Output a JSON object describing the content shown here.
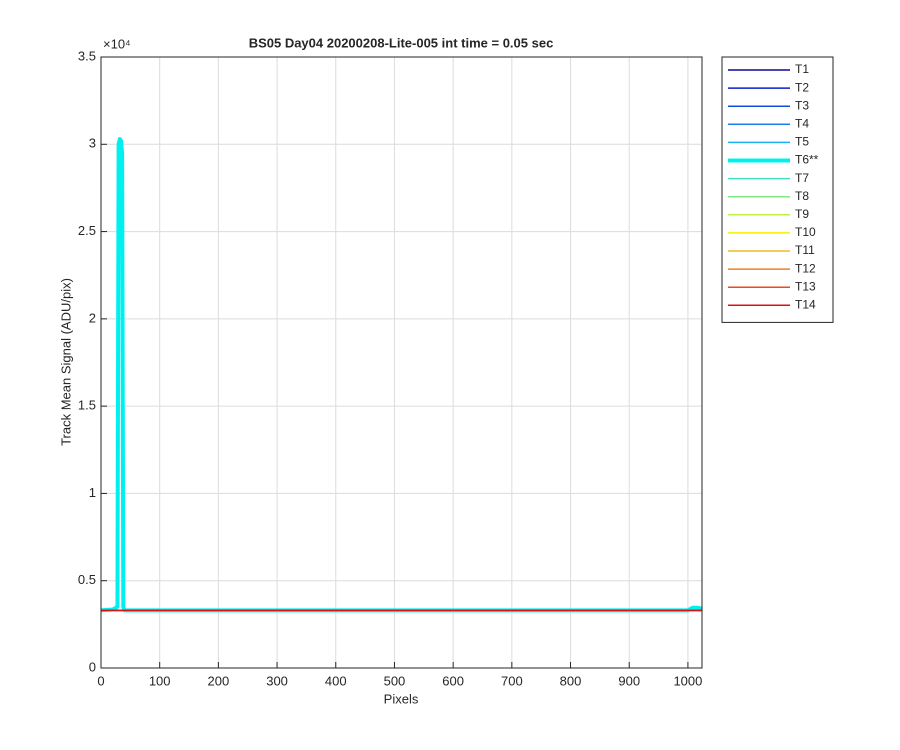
{
  "chart_data": {
    "type": "line",
    "title": "BS05 Day04 20200208-Lite-005 int time = 0.05 sec",
    "x_label": "Pixels",
    "y_label": "Track Mean Signal (ADU/pix)",
    "y_exponent_label": "×10⁴",
    "x": [
      0,
      20,
      28,
      30,
      32,
      34,
      36,
      38,
      40,
      1000,
      1008,
      1015,
      1024
    ],
    "series": [
      {
        "name": "T1",
        "color": "#0a0a8f",
        "line_width": 1.5,
        "values": [
          3300,
          3300,
          3300,
          3300,
          3300,
          3300,
          3300,
          3300,
          3300,
          3300,
          3300,
          3300,
          3300
        ]
      },
      {
        "name": "T2",
        "color": "#0a1fc9",
        "line_width": 1.5,
        "values": [
          3300,
          3300,
          3300,
          3300,
          3300,
          3300,
          3300,
          3300,
          3300,
          3300,
          3300,
          3300,
          3300
        ]
      },
      {
        "name": "T3",
        "color": "#0f4fe0",
        "line_width": 1.5,
        "values": [
          3300,
          3300,
          3300,
          3300,
          3300,
          3300,
          3300,
          3300,
          3300,
          3300,
          3300,
          3300,
          3300
        ]
      },
      {
        "name": "T4",
        "color": "#1a7fe6",
        "line_width": 1.5,
        "values": [
          3300,
          3300,
          3300,
          3300,
          3300,
          3300,
          3300,
          3300,
          3300,
          3300,
          3300,
          3300,
          3300
        ]
      },
      {
        "name": "T5",
        "color": "#1ab0f0",
        "line_width": 1.5,
        "values": [
          3300,
          3300,
          3300,
          3300,
          3300,
          3300,
          3300,
          3300,
          3300,
          3300,
          3300,
          3300,
          3300
        ]
      },
      {
        "name": "T6**",
        "color": "#00f0f0",
        "line_width": 4,
        "values": [
          3300,
          3350,
          3500,
          30000,
          30300,
          30200,
          29500,
          3500,
          3300,
          3300,
          3450,
          3450,
          3400
        ]
      },
      {
        "name": "T7",
        "color": "#40e0c0",
        "line_width": 1.5,
        "values": [
          3300,
          3300,
          3300,
          3300,
          3300,
          3300,
          3300,
          3300,
          3300,
          3300,
          3300,
          3300,
          3300
        ]
      },
      {
        "name": "T8",
        "color": "#7fe880",
        "line_width": 1.5,
        "values": [
          3300,
          3300,
          3300,
          3300,
          3300,
          3300,
          3300,
          3300,
          3300,
          3300,
          3300,
          3300,
          3300
        ]
      },
      {
        "name": "T9",
        "color": "#c0f040",
        "line_width": 1.5,
        "values": [
          3300,
          3300,
          3300,
          3300,
          3300,
          3300,
          3300,
          3300,
          3300,
          3300,
          3300,
          3300,
          3300
        ]
      },
      {
        "name": "T10",
        "color": "#f8f000",
        "line_width": 1.5,
        "values": [
          3300,
          3300,
          3300,
          3300,
          3300,
          3300,
          3300,
          3300,
          3300,
          3300,
          3300,
          3300,
          3300
        ]
      },
      {
        "name": "T11",
        "color": "#f0b820",
        "line_width": 1.5,
        "values": [
          3300,
          3300,
          3300,
          3300,
          3300,
          3300,
          3300,
          3300,
          3300,
          3300,
          3300,
          3300,
          3300
        ]
      },
      {
        "name": "T12",
        "color": "#f08020",
        "line_width": 1.5,
        "values": [
          3300,
          3300,
          3300,
          3300,
          3300,
          3300,
          3300,
          3300,
          3300,
          3300,
          3300,
          3300,
          3300
        ]
      },
      {
        "name": "T13",
        "color": "#f04818",
        "line_width": 1.5,
        "values": [
          3300,
          3300,
          3300,
          3300,
          3300,
          3300,
          3300,
          3300,
          3300,
          3300,
          3300,
          3300,
          3300
        ]
      },
      {
        "name": "T14",
        "color": "#e01010",
        "line_width": 1.5,
        "values": [
          3300,
          3300,
          3300,
          3300,
          3300,
          3300,
          3300,
          3300,
          3300,
          3300,
          3300,
          3300,
          3300
        ]
      }
    ],
    "xlim": [
      0,
      1024
    ],
    "xticks": [
      0,
      100,
      200,
      300,
      400,
      500,
      600,
      700,
      800,
      900,
      1000
    ],
    "ylim": [
      0,
      35000
    ],
    "yticks": [
      {
        "value": 0,
        "label": "0"
      },
      {
        "value": 5000,
        "label": "0.5"
      },
      {
        "value": 10000,
        "label": "1"
      },
      {
        "value": 15000,
        "label": "1.5"
      },
      {
        "value": 20000,
        "label": "2"
      },
      {
        "value": 25000,
        "label": "2.5"
      },
      {
        "value": 30000,
        "label": "3"
      },
      {
        "value": 35000,
        "label": "3.5"
      }
    ],
    "grid": true,
    "legend": "outside-right"
  }
}
